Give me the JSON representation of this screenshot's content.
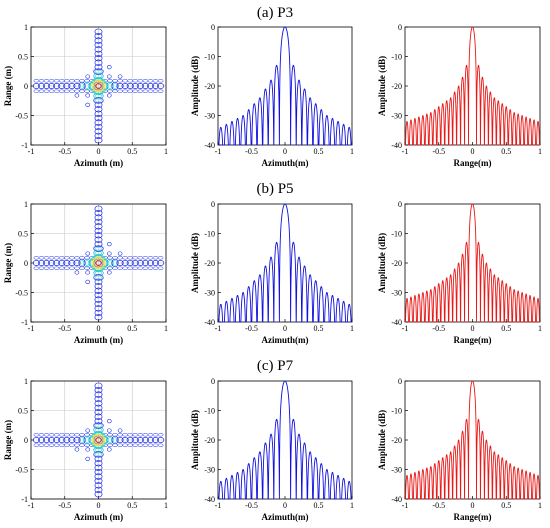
{
  "panel_titles": [
    "(a) P3",
    "(b) P5",
    "(c) P7"
  ],
  "colors": {
    "azimuth_profile": "#1010e0",
    "range_profile": "#e81818",
    "grid": "#c8c8c8",
    "contour_levels": [
      "#1a2ce6",
      "#18b0e8",
      "#20d8c8",
      "#e6e020",
      "#f0902a",
      "#e02020"
    ]
  },
  "chart_data": [
    {
      "type": "contour",
      "panel": "(a) P3",
      "xlabel": "Azimuth (m)",
      "ylabel": "Range (m)",
      "xlim": [
        -1,
        1
      ],
      "ylim": [
        -1,
        1
      ],
      "xticks": [
        "-1",
        "-0.5",
        "0",
        "0.5",
        "1"
      ],
      "yticks": [
        "1",
        "0.5",
        "0",
        "-0.5",
        "-1"
      ],
      "grid": true
    },
    {
      "type": "line",
      "panel": "(a) P3",
      "xlabel": "Azimuth(m)",
      "ylabel": "Amplitude (dB)",
      "xlim": [
        -1,
        1
      ],
      "ylim": [
        -40,
        0
      ],
      "xticks": [
        "-1",
        "-0.5",
        "0",
        "0.5",
        "1"
      ],
      "yticks": [
        "0",
        "-10",
        "-20",
        "-30",
        "-40"
      ],
      "series_color": "azimuth_profile",
      "peak": [
        0,
        0
      ],
      "sidelobe_levels_db": [
        -13,
        -18,
        -21,
        -24,
        -26,
        -28,
        -30,
        -31,
        -32,
        -33,
        -34
      ]
    },
    {
      "type": "line",
      "panel": "(a) P3",
      "xlabel": "Range(m)",
      "ylabel": "Amplitude (dB)",
      "xlim": [
        -1,
        1
      ],
      "ylim": [
        -40,
        0
      ],
      "xticks": [
        "-1",
        "-0.5",
        "0",
        "0.5",
        "1"
      ],
      "yticks": [
        "0",
        "-10",
        "-20",
        "-30",
        "-40"
      ],
      "series_color": "range_profile",
      "peak": [
        0,
        0
      ],
      "sidelobe_levels_db": [
        -13,
        -17,
        -20,
        -22,
        -24,
        -25,
        -26,
        -27,
        -28,
        -29,
        -29.5,
        -30,
        -30.5,
        -31,
        -31.5,
        -32
      ]
    },
    {
      "type": "contour",
      "panel": "(b) P5",
      "xlabel": "Azimuth (m)",
      "ylabel": "Range (m)",
      "xlim": [
        -1,
        1
      ],
      "ylim": [
        -1,
        1
      ],
      "xticks": [
        "-1",
        "-0.5",
        "0",
        "0.5",
        "1"
      ],
      "yticks": [
        "1",
        "0.5",
        "0",
        "-0.5",
        "-1"
      ],
      "grid": true
    },
    {
      "type": "line",
      "panel": "(b) P5",
      "xlabel": "Azimuth(m)",
      "ylabel": "Amplitude (dB)",
      "xlim": [
        -1,
        1
      ],
      "ylim": [
        -40,
        0
      ],
      "xticks": [
        "-1",
        "-0.5",
        "0",
        "0.5",
        "1"
      ],
      "yticks": [
        "0",
        "-10",
        "-20",
        "-30",
        "-40"
      ],
      "series_color": "azimuth_profile",
      "peak": [
        0,
        0
      ],
      "sidelobe_levels_db": [
        -13,
        -18,
        -21,
        -24,
        -26,
        -28,
        -30,
        -31,
        -32,
        -33,
        -34
      ]
    },
    {
      "type": "line",
      "panel": "(b) P5",
      "xlabel": "Range(m)",
      "ylabel": "Amplitude (dB)",
      "xlim": [
        -1,
        1
      ],
      "ylim": [
        -40,
        0
      ],
      "xticks": [
        "-1",
        "-0.5",
        "0",
        "0.5",
        "1"
      ],
      "yticks": [
        "0",
        "-10",
        "-20",
        "-30",
        "-40"
      ],
      "series_color": "range_profile",
      "peak": [
        0,
        0
      ],
      "sidelobe_levels_db": [
        -13,
        -17,
        -20,
        -22,
        -24,
        -25,
        -26,
        -27,
        -28,
        -29,
        -29.5,
        -30,
        -30.5,
        -31,
        -31.5,
        -32
      ]
    },
    {
      "type": "contour",
      "panel": "(c) P7",
      "xlabel": "Azimuth (m)",
      "ylabel": "Range (m)",
      "xlim": [
        -1,
        1
      ],
      "ylim": [
        -1,
        1
      ],
      "xticks": [
        "-1",
        "-0.5",
        "0",
        "0.5",
        "1"
      ],
      "yticks": [
        "1",
        "0.5",
        "0",
        "-0.5",
        "-1"
      ],
      "grid": true
    },
    {
      "type": "line",
      "panel": "(c) P7",
      "xlabel": "Azimuth(m)",
      "ylabel": "Amplitude (dB)",
      "xlim": [
        -1,
        1
      ],
      "ylim": [
        -40,
        0
      ],
      "xticks": [
        "-1",
        "-0.5",
        "0",
        "0.5",
        "1"
      ],
      "yticks": [
        "0",
        "-10",
        "-20",
        "-30",
        "-40"
      ],
      "series_color": "azimuth_profile",
      "peak": [
        0,
        0
      ],
      "sidelobe_levels_db": [
        -13,
        -18,
        -21,
        -24,
        -26,
        -28,
        -30,
        -31,
        -32,
        -33,
        -34
      ]
    },
    {
      "type": "line",
      "panel": "(c) P7",
      "xlabel": "Range(m)",
      "ylabel": "Amplitude (dB)",
      "xlim": [
        -1,
        1
      ],
      "ylim": [
        -40,
        0
      ],
      "xticks": [
        "-1",
        "-0.5",
        "0",
        "0.5",
        "1"
      ],
      "yticks": [
        "0",
        "-10",
        "-20",
        "-30",
        "-40"
      ],
      "series_color": "range_profile",
      "peak": [
        0,
        0
      ],
      "sidelobe_levels_db": [
        -13,
        -17,
        -20,
        -22,
        -24,
        -25,
        -26,
        -27,
        -28,
        -29,
        -29.5,
        -30,
        -30.5,
        -31,
        -31.5,
        -32
      ]
    }
  ]
}
